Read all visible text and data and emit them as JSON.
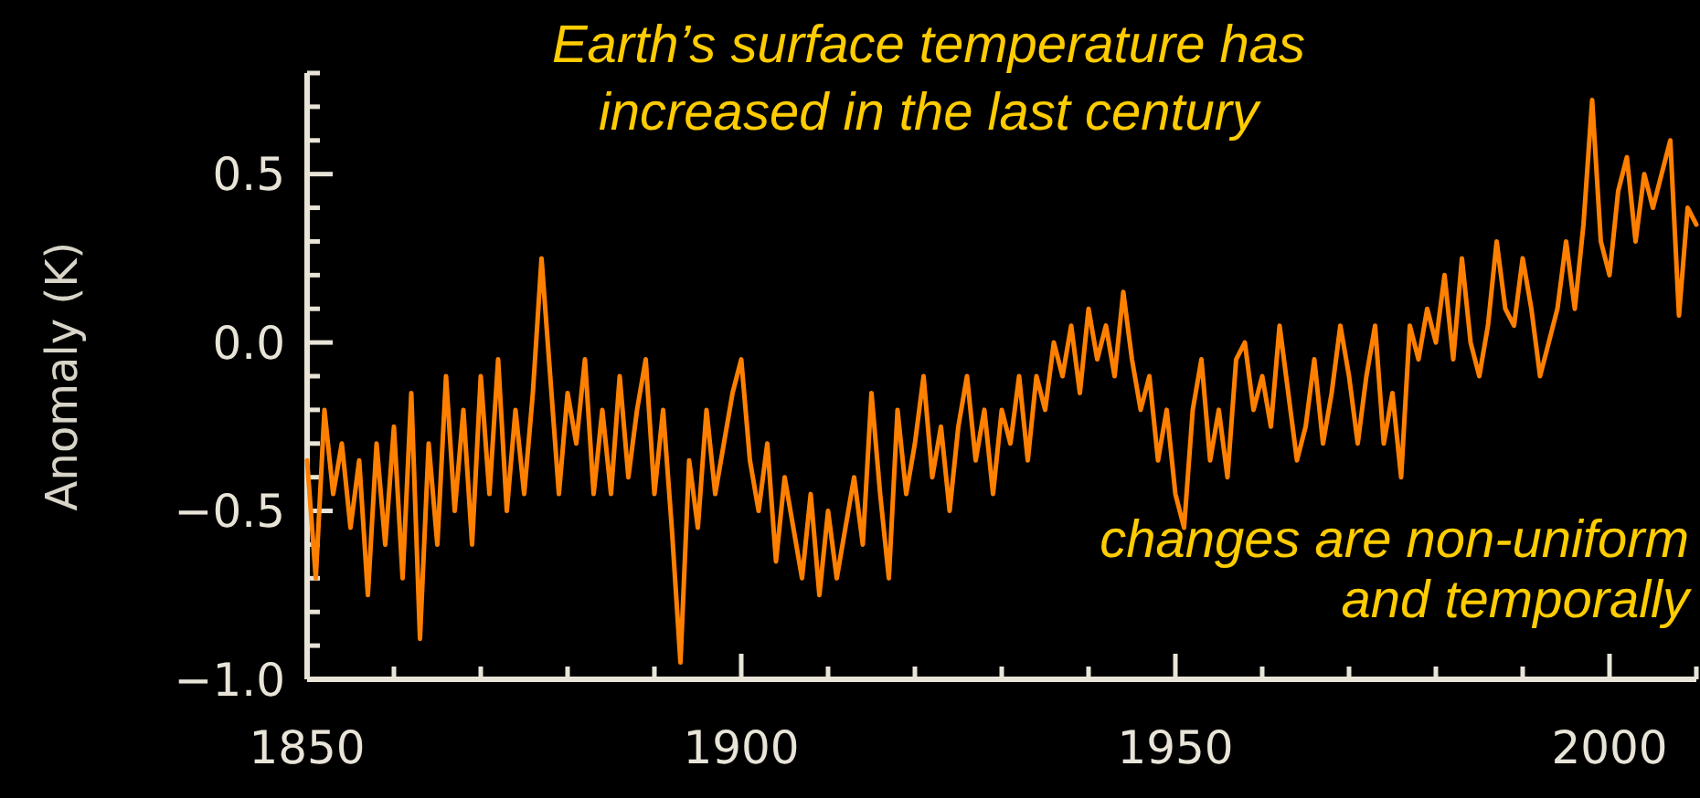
{
  "chart_data": {
    "type": "line",
    "title": "Earth’s surface temperature has\nincreased in the last century",
    "ylabel": "Anomaly (K)",
    "annotations": [
      "changes are non-uniform\nand temporally"
    ],
    "x": [
      1850,
      1851,
      1852,
      1853,
      1854,
      1855,
      1856,
      1857,
      1858,
      1859,
      1860,
      1861,
      1862,
      1863,
      1864,
      1865,
      1866,
      1867,
      1868,
      1869,
      1870,
      1871,
      1872,
      1873,
      1874,
      1875,
      1876,
      1877,
      1878,
      1879,
      1880,
      1881,
      1882,
      1883,
      1884,
      1885,
      1886,
      1887,
      1888,
      1889,
      1890,
      1891,
      1892,
      1893,
      1894,
      1895,
      1896,
      1897,
      1898,
      1899,
      1900,
      1901,
      1902,
      1903,
      1904,
      1905,
      1906,
      1907,
      1908,
      1909,
      1910,
      1911,
      1912,
      1913,
      1914,
      1915,
      1916,
      1917,
      1918,
      1919,
      1920,
      1921,
      1922,
      1923,
      1924,
      1925,
      1926,
      1927,
      1928,
      1929,
      1930,
      1931,
      1932,
      1933,
      1934,
      1935,
      1936,
      1937,
      1938,
      1939,
      1940,
      1941,
      1942,
      1943,
      1944,
      1945,
      1946,
      1947,
      1948,
      1949,
      1950,
      1951,
      1952,
      1953,
      1954,
      1955,
      1956,
      1957,
      1958,
      1959,
      1960,
      1961,
      1962,
      1963,
      1964,
      1965,
      1966,
      1967,
      1968,
      1969,
      1970,
      1971,
      1972,
      1973,
      1974,
      1975,
      1976,
      1977,
      1978,
      1979,
      1980,
      1981,
      1982,
      1983,
      1984,
      1985,
      1986,
      1987,
      1988,
      1989,
      1990,
      1991,
      1992,
      1993,
      1994,
      1995,
      1996,
      1997,
      1998,
      1999,
      2000,
      2001,
      2002,
      2003,
      2004,
      2005,
      2006,
      2007,
      2008,
      2009,
      2010
    ],
    "series": [
      {
        "color": "#ff8000",
        "values": [
          -0.35,
          -0.7,
          -0.2,
          -0.45,
          -0.3,
          -0.55,
          -0.35,
          -0.75,
          -0.3,
          -0.6,
          -0.25,
          -0.7,
          -0.15,
          -0.88,
          -0.3,
          -0.6,
          -0.1,
          -0.5,
          -0.2,
          -0.6,
          -0.1,
          -0.45,
          -0.05,
          -0.5,
          -0.2,
          -0.45,
          -0.15,
          0.25,
          -0.1,
          -0.45,
          -0.15,
          -0.3,
          -0.05,
          -0.45,
          -0.2,
          -0.45,
          -0.1,
          -0.4,
          -0.2,
          -0.05,
          -0.45,
          -0.2,
          -0.55,
          -0.95,
          -0.35,
          -0.55,
          -0.2,
          -0.45,
          -0.3,
          -0.15,
          -0.05,
          -0.35,
          -0.5,
          -0.3,
          -0.65,
          -0.4,
          -0.55,
          -0.7,
          -0.45,
          -0.75,
          -0.5,
          -0.7,
          -0.55,
          -0.4,
          -0.6,
          -0.15,
          -0.45,
          -0.7,
          -0.2,
          -0.45,
          -0.3,
          -0.1,
          -0.4,
          -0.25,
          -0.5,
          -0.25,
          -0.1,
          -0.35,
          -0.2,
          -0.45,
          -0.2,
          -0.3,
          -0.1,
          -0.35,
          -0.1,
          -0.2,
          0.0,
          -0.1,
          0.05,
          -0.15,
          0.1,
          -0.05,
          0.05,
          -0.1,
          0.15,
          -0.05,
          -0.2,
          -0.1,
          -0.35,
          -0.2,
          -0.45,
          -0.55,
          -0.2,
          -0.05,
          -0.35,
          -0.2,
          -0.4,
          -0.05,
          0.0,
          -0.2,
          -0.1,
          -0.25,
          0.05,
          -0.15,
          -0.35,
          -0.25,
          -0.05,
          -0.3,
          -0.15,
          0.05,
          -0.1,
          -0.3,
          -0.1,
          0.05,
          -0.3,
          -0.15,
          -0.4,
          0.05,
          -0.05,
          0.1,
          0.0,
          0.2,
          -0.05,
          0.25,
          0.0,
          -0.1,
          0.05,
          0.3,
          0.1,
          0.05,
          0.25,
          0.1,
          -0.1,
          0.0,
          0.1,
          0.3,
          0.1,
          0.35,
          0.72,
          0.3,
          0.2,
          0.45,
          0.55,
          0.3,
          0.5,
          0.4,
          0.5,
          0.6,
          0.08,
          0.4,
          0.35
        ]
      }
    ],
    "xlim": [
      1850,
      2010
    ],
    "ylim": [
      -1.0,
      0.8
    ],
    "xticks": [
      1850,
      {
        "value": 1860,
        "label": null
      },
      {
        "value": 1870,
        "label": null
      },
      {
        "value": 1880,
        "label": null
      },
      {
        "value": 1890,
        "label": null
      },
      1900,
      {
        "value": 1910,
        "label": null
      },
      {
        "value": 1920,
        "label": null
      },
      {
        "value": 1930,
        "label": null
      },
      {
        "value": 1940,
        "label": null
      },
      1950,
      {
        "value": 1960,
        "label": null
      },
      {
        "value": 1970,
        "label": null
      },
      {
        "value": 1980,
        "label": null
      },
      {
        "value": 1990,
        "label": null
      },
      2000,
      {
        "value": 2010,
        "label": null
      }
    ],
    "yticks": [
      {
        "value": -1.0,
        "label": "−1.0"
      },
      {
        "value": -0.9,
        "label": null
      },
      {
        "value": -0.8,
        "label": null
      },
      {
        "value": -0.7,
        "label": null
      },
      {
        "value": -0.6,
        "label": null
      },
      {
        "value": -0.5,
        "label": "−0.5"
      },
      {
        "value": -0.4,
        "label": null
      },
      {
        "value": -0.3,
        "label": null
      },
      {
        "value": -0.2,
        "label": null
      },
      {
        "value": -0.1,
        "label": null
      },
      {
        "value": 0.0,
        "label": "0.0"
      },
      {
        "value": 0.1,
        "label": null
      },
      {
        "value": 0.2,
        "label": null
      },
      {
        "value": 0.3,
        "label": null
      },
      {
        "value": 0.4,
        "label": null
      },
      {
        "value": 0.5,
        "label": "0.5"
      },
      {
        "value": 0.6,
        "label": null
      },
      {
        "value": 0.7,
        "label": null
      },
      {
        "value": 0.8,
        "label": null
      }
    ],
    "marker": "none",
    "line_style": "solid"
  }
}
